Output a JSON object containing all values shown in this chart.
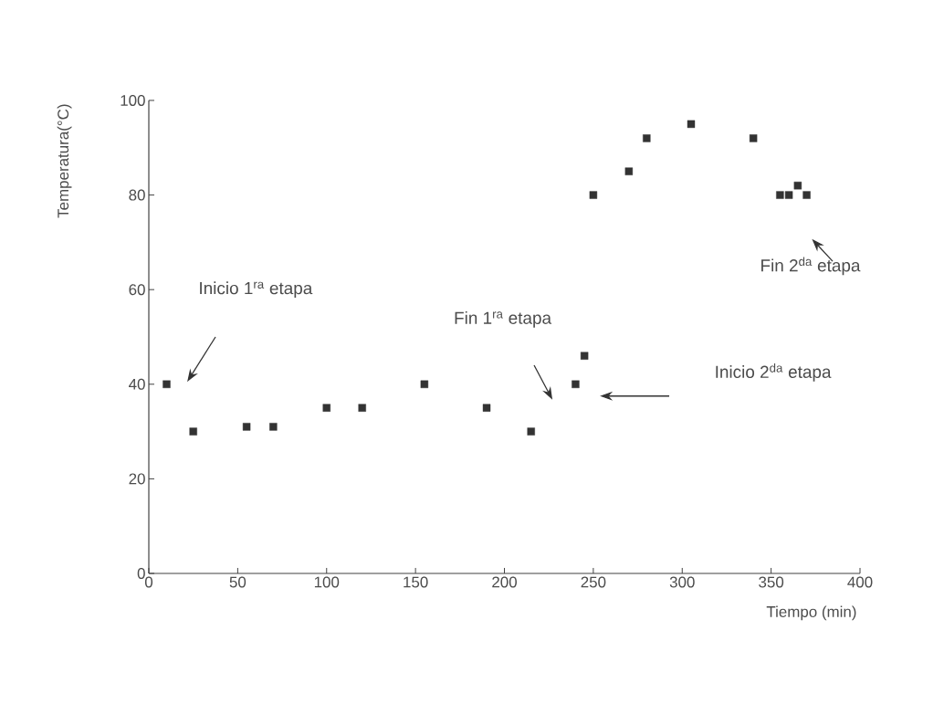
{
  "chart_data": {
    "type": "scatter",
    "xlabel": "Tiempo (min)",
    "ylabel": "Temperatura(°C)",
    "x": [
      10,
      25,
      55,
      70,
      100,
      120,
      155,
      190,
      215,
      240,
      245,
      250,
      270,
      280,
      305,
      340,
      355,
      360,
      365,
      370
    ],
    "series": [
      {
        "color": "#333333",
        "values": [
          40,
          30,
          31,
          31,
          35,
          35,
          40,
          35,
          30,
          40,
          46,
          80,
          85,
          92,
          95,
          92,
          80,
          80,
          82,
          80
        ]
      }
    ],
    "xlim": [
      0,
      400
    ],
    "ylim": [
      0,
      100
    ],
    "xticks": [
      0,
      50,
      100,
      150,
      200,
      250,
      300,
      350,
      400
    ],
    "yticks": [
      0,
      20,
      40,
      60,
      80,
      100
    ],
    "marker": "square",
    "grid": false,
    "annotations": [
      "Inicio 1$^{ra}$ etapa",
      "Fin 1$^{ra}$ etapa",
      "Inicio 2$^{da}$ etapa",
      "Fin 2$^{da}$ etapa"
    ]
  }
}
